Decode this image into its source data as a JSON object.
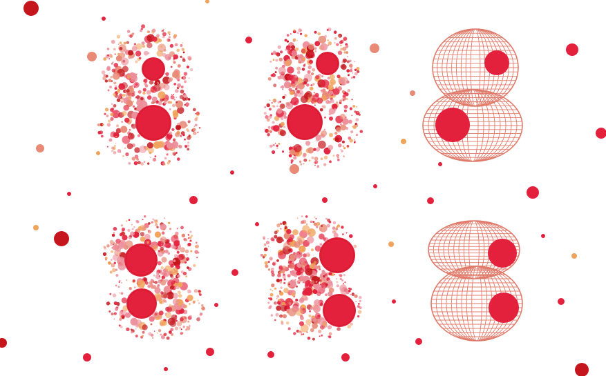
{
  "scene": {
    "description_hidden": "",
    "palette": {
      "background": "#ffffff",
      "red": "#e3213d",
      "dark_red": "#c4161c",
      "pink": "#ec8e9a",
      "salmon": "#e88a76",
      "orange": "#f0a35a",
      "mesh": "#e07a6a"
    },
    "figures": [
      {
        "id": "top-dotted-1",
        "style": "dotted",
        "shape": "figure-eight"
      },
      {
        "id": "top-dotted-2",
        "style": "dotted",
        "shape": "figure-eight"
      },
      {
        "id": "top-mesh",
        "style": "wireframe",
        "shape": "figure-eight"
      },
      {
        "id": "bottom-dotted-1",
        "style": "dotted",
        "shape": "kidney"
      },
      {
        "id": "bottom-dotted-2",
        "style": "dotted",
        "shape": "kidney"
      },
      {
        "id": "bottom-mesh",
        "style": "wireframe",
        "shape": "kidney"
      }
    ]
  }
}
